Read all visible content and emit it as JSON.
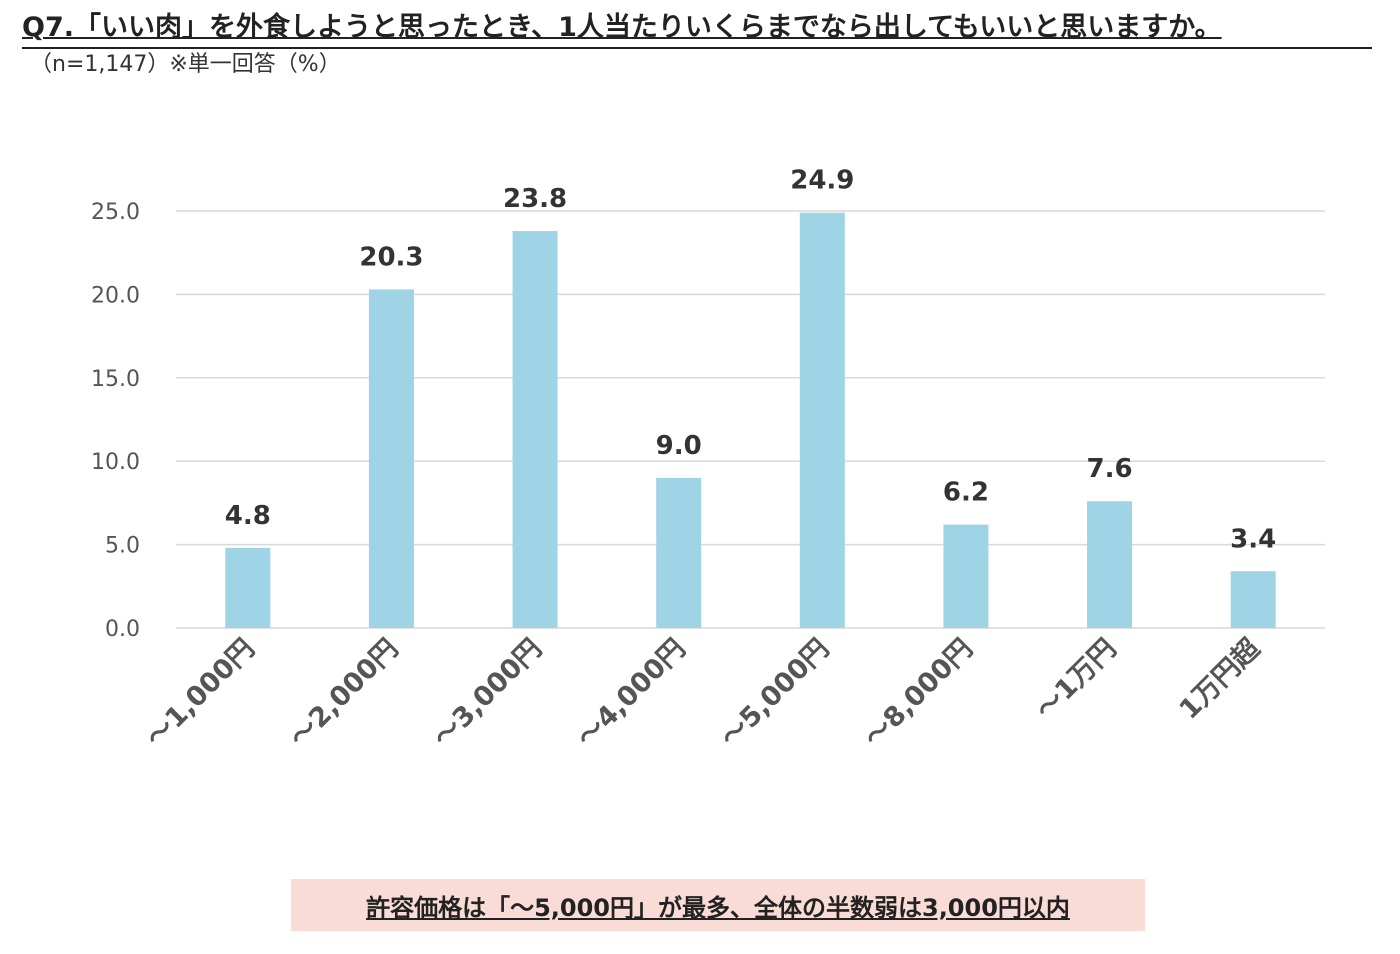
{
  "header": {
    "title": "Q7.「いい肉」を外食しようと思ったとき、1人当たりいくらまでなら出してもいいと思いますか。",
    "subtitle": "（n=1,147）※単一回答（%）"
  },
  "callout": {
    "text": "許容価格は「～5,000円」が最多、全体の半数弱は3,000円以内"
  },
  "colors": {
    "bar": "#9fd4e7",
    "gridline": "#d9d9d9",
    "callout_bg": "#fadcd6"
  },
  "chart_data": {
    "type": "bar",
    "categories": [
      "～1,000円",
      "～2,000円",
      "～3,000円",
      "～4,000円",
      "～5,000円",
      "～8,000円",
      "～1万円",
      "1万円超"
    ],
    "values": [
      4.8,
      20.3,
      23.8,
      9.0,
      24.9,
      6.2,
      7.6,
      3.4
    ],
    "value_labels": [
      "4.8",
      "20.3",
      "23.8",
      "9.0",
      "24.9",
      "6.2",
      "7.6",
      "3.4"
    ],
    "y_ticks": [
      "0.0",
      "5.0",
      "10.0",
      "15.0",
      "20.0",
      "25.0"
    ],
    "ylim": [
      0,
      25
    ],
    "grid": true,
    "legend": "none",
    "xlabel": "",
    "ylabel": ""
  }
}
